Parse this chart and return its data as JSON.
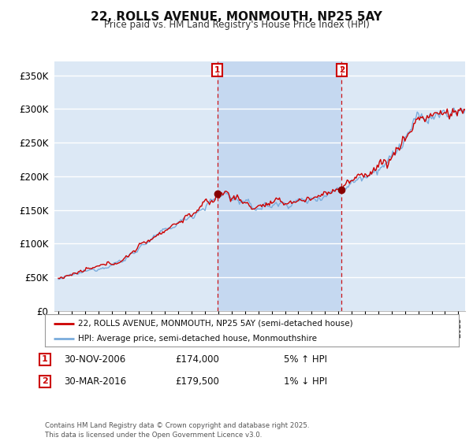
{
  "title": "22, ROLLS AVENUE, MONMOUTH, NP25 5AY",
  "subtitle": "Price paid vs. HM Land Registry's House Price Index (HPI)",
  "ylabel_ticks": [
    "£0",
    "£50K",
    "£100K",
    "£150K",
    "£200K",
    "£250K",
    "£300K",
    "£350K"
  ],
  "ylim": [
    0,
    370000
  ],
  "xlim_start": 1994.7,
  "xlim_end": 2025.5,
  "transaction1": {
    "date": "30-NOV-2006",
    "price": 174000,
    "hpi_pct": "5% ↑ HPI",
    "x": 2006.92
  },
  "transaction2": {
    "date": "30-MAR-2016",
    "price": 179500,
    "hpi_pct": "1% ↓ HPI",
    "x": 2016.25
  },
  "legend_line1": "22, ROLLS AVENUE, MONMOUTH, NP25 5AY (semi-detached house)",
  "legend_line2": "HPI: Average price, semi-detached house, Monmouthshire",
  "footer": "Contains HM Land Registry data © Crown copyright and database right 2025.\nThis data is licensed under the Open Government Licence v3.0.",
  "line_color_price": "#cc0000",
  "line_color_hpi": "#7aacdc",
  "bg_color": "#dce8f5",
  "shade_color": "#c5d8f0",
  "grid_color": "#ffffff",
  "marker_box_color": "#cc0000",
  "fig_bg": "#ffffff"
}
